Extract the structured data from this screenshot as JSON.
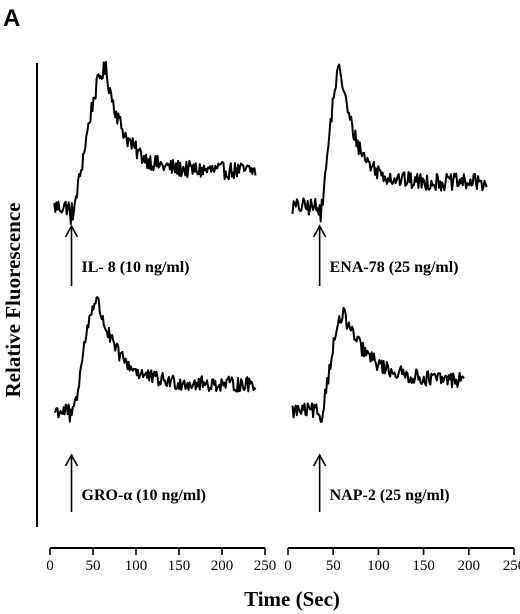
{
  "figure": {
    "panel_label": "A",
    "ylabel": "Relative Fluorescence",
    "xlabel": "Time (Sec)"
  },
  "chart_data": {
    "type": "line",
    "xlabel": "Time (Sec)",
    "ylabel": "Relative Fluorescence",
    "grid": false,
    "axes": [
      {
        "id": "left",
        "xlim": [
          0,
          250
        ],
        "ticks": [
          0,
          50,
          100,
          150,
          200,
          250
        ],
        "tick_labels": [
          "0",
          "50",
          "100",
          "150",
          "200",
          "250"
        ]
      },
      {
        "id": "right",
        "xlim": [
          0,
          250
        ],
        "ticks": [
          0,
          50,
          100,
          150,
          200,
          250
        ],
        "tick_labels": [
          "0",
          "50",
          "100",
          "150",
          "200",
          "250"
        ]
      }
    ],
    "panels": [
      {
        "id": "il8",
        "axis": "left",
        "row": "top",
        "annotation": "IL- 8 (10 ng/ml)",
        "stimulus_time": 25,
        "x_start": 5,
        "x_end": 240,
        "base": 0.05,
        "peak": 1.0,
        "peak_time": 65,
        "plateau": 0.3,
        "decay_tau": 22
      },
      {
        "id": "ena78",
        "axis": "right",
        "row": "top",
        "annotation": "ENA-78 (25 ng/ml)",
        "stimulus_time": 35,
        "x_start": 5,
        "x_end": 220,
        "base": 0.05,
        "peak": 1.0,
        "peak_time": 58,
        "plateau": 0.22,
        "decay_tau": 18
      },
      {
        "id": "gro",
        "axis": "left",
        "row": "bottom",
        "annotation": "GRO-α (10 ng/ml)",
        "stimulus_time": 25,
        "x_start": 5,
        "x_end": 240,
        "base": 0.12,
        "peak": 1.0,
        "peak_time": 55,
        "plateau": 0.33,
        "decay_tau": 25
      },
      {
        "id": "nap2",
        "axis": "right",
        "row": "bottom",
        "annotation": "NAP-2 (25 ng/ml)",
        "stimulus_time": 35,
        "x_start": 5,
        "x_end": 195,
        "base": 0.12,
        "peak": 0.88,
        "peak_time": 62,
        "plateau": 0.36,
        "decay_tau": 28
      }
    ]
  }
}
